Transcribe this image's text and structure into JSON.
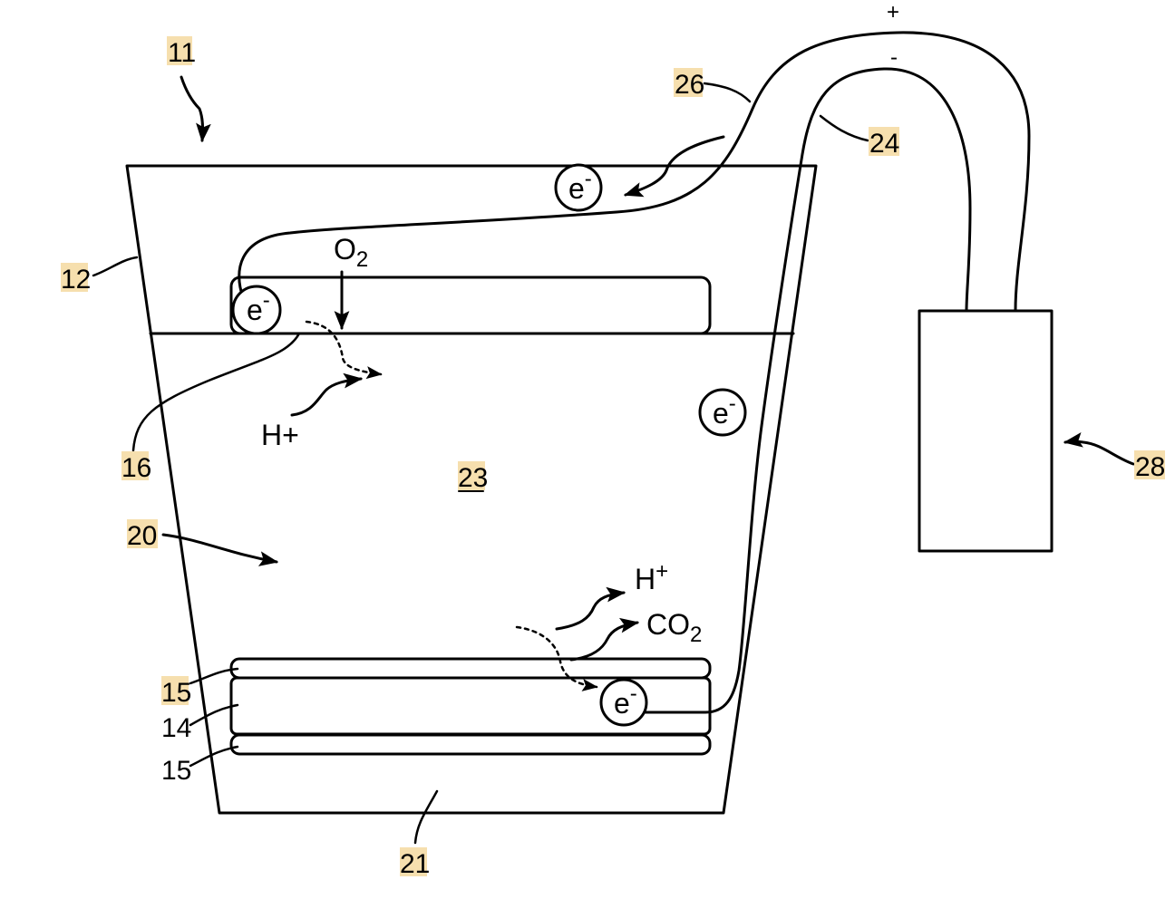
{
  "colors": {
    "stroke": "#000000",
    "background": "#ffffff",
    "highlight": "#f6dfae"
  },
  "labels": {
    "ref_11": "11",
    "ref_12": "12",
    "ref_14": "14",
    "ref_15_top": "15",
    "ref_15_bottom": "15",
    "ref_16": "16",
    "ref_20": "20",
    "ref_21": "21",
    "ref_23": "23",
    "ref_24": "24",
    "ref_26": "26",
    "ref_28": "28"
  },
  "symbols": {
    "plus": "+",
    "minus": "-",
    "o2_main": "O",
    "o2_sub": "2",
    "h_plus_left": "H+",
    "h_plus_right_main": "H",
    "h_plus_right_sup": "+",
    "co2_main": "CO",
    "co2_sub": "2",
    "electron_main": "e",
    "electron_sup": "-"
  }
}
